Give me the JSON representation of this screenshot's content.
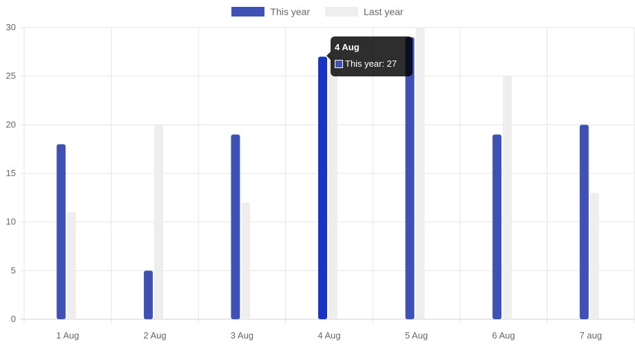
{
  "chart_data": {
    "type": "bar",
    "categories": [
      "1 Aug",
      "2 Aug",
      "3 Aug",
      "4 Aug",
      "5 Aug",
      "6 Aug",
      "7 aug"
    ],
    "series": [
      {
        "name": "This year",
        "values": [
          18,
          5,
          19,
          27,
          29,
          19,
          20
        ],
        "color": "#3f51b5",
        "highlight_color": "#1a33c7"
      },
      {
        "name": "Last year",
        "values": [
          11,
          20,
          12,
          27,
          30,
          25,
          13
        ],
        "color": "#eeeeee"
      }
    ],
    "ylim": [
      0,
      30
    ],
    "yticks": [
      "0",
      "5",
      "10",
      "15",
      "20",
      "25",
      "30"
    ],
    "grid": true,
    "legend": "top-center",
    "gridColor": "#e5e5e5",
    "tooltip": {
      "title": "4 Aug",
      "label": "This year: 27",
      "category_index": 3
    }
  }
}
